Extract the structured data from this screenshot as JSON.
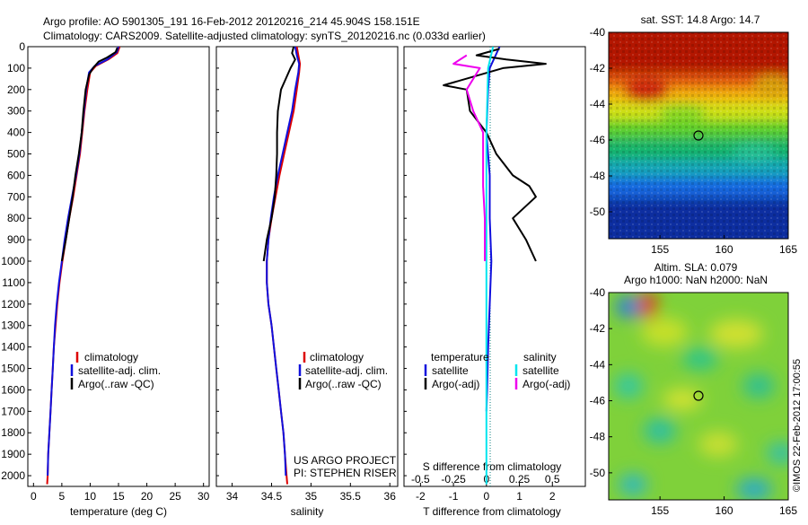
{
  "header": {
    "line1": "Argo profile: AO 5901305_191 16-Feb-2012 20120216_214 45.904S 158.151E",
    "line2": "Climatology: CARS2009. Satellite-adjusted climatology: synTS_20120216.nc (0.033d earlier)"
  },
  "credit": {
    "project": "US ARGO PROJECT",
    "pi": "PI: STEPHEN RISER"
  },
  "stamp": "©IMOS 22-Feb-2012 17:00:55",
  "colors": {
    "climatology": "#dd0000",
    "satellite": "#1010dd",
    "argo": "#000000",
    "sat_salinity": "#00e5ee",
    "argo_salinity": "#ee00ee"
  },
  "depth_ticks": [
    "0",
    "100",
    "200",
    "300",
    "400",
    "500",
    "600",
    "700",
    "800",
    "900",
    "1000",
    "1100",
    "1200",
    "1300",
    "1400",
    "1500",
    "1600",
    "1700",
    "1800",
    "1900",
    "2000"
  ],
  "chart_data": [
    {
      "type": "line",
      "ylim": [
        2050,
        0
      ],
      "xlabel": "temperature (deg C)",
      "xlim": [
        -1,
        31
      ],
      "xticks": [
        "0",
        "5",
        "10",
        "15",
        "20",
        "25",
        "30"
      ],
      "xtick_values": [
        0,
        5,
        10,
        15,
        20,
        25,
        30
      ],
      "legend": [
        "climatology",
        "satellite-adj. clim.",
        "Argo(..raw -QC)"
      ],
      "legend_position": "bottom-center",
      "series": [
        {
          "name": "climatology",
          "color_key": "climatology",
          "points": [
            [
              15.2,
              0
            ],
            [
              14.8,
              30
            ],
            [
              13.2,
              60
            ],
            [
              11.0,
              90
            ],
            [
              10.0,
              120
            ],
            [
              9.5,
              200
            ],
            [
              9.0,
              300
            ],
            [
              8.6,
              400
            ],
            [
              8.2,
              500
            ],
            [
              7.6,
              600
            ],
            [
              7.0,
              700
            ],
            [
              6.3,
              800
            ],
            [
              5.7,
              900
            ],
            [
              5.1,
              1000
            ],
            [
              4.6,
              1100
            ],
            [
              4.2,
              1200
            ],
            [
              3.9,
              1300
            ],
            [
              3.6,
              1400
            ],
            [
              3.4,
              1500
            ],
            [
              3.2,
              1600
            ],
            [
              3.0,
              1700
            ],
            [
              2.8,
              1800
            ],
            [
              2.6,
              1900
            ],
            [
              2.5,
              2000
            ],
            [
              2.4,
              2040
            ]
          ]
        },
        {
          "name": "satellite-adj. clim.",
          "color_key": "satellite",
          "points": [
            [
              15.0,
              0
            ],
            [
              14.7,
              25
            ],
            [
              13.0,
              60
            ],
            [
              10.8,
              90
            ],
            [
              9.8,
              120
            ],
            [
              9.3,
              200
            ],
            [
              8.9,
              300
            ],
            [
              8.5,
              400
            ],
            [
              8.1,
              500
            ],
            [
              7.5,
              600
            ],
            [
              6.8,
              700
            ],
            [
              6.1,
              800
            ],
            [
              5.5,
              900
            ],
            [
              5.0,
              1000
            ],
            [
              4.5,
              1100
            ],
            [
              4.1,
              1200
            ],
            [
              3.8,
              1300
            ],
            [
              3.6,
              1400
            ],
            [
              3.4,
              1500
            ],
            [
              3.2,
              1600
            ],
            [
              3.0,
              1700
            ],
            [
              2.8,
              1800
            ],
            [
              2.6,
              1900
            ],
            [
              2.5,
              2000
            ]
          ]
        },
        {
          "name": "Argo(..raw -QC)",
          "color_key": "argo",
          "points": [
            [
              14.8,
              5
            ],
            [
              14.5,
              25
            ],
            [
              13.0,
              50
            ],
            [
              11.5,
              70
            ],
            [
              10.5,
              100
            ],
            [
              9.8,
              130
            ],
            [
              9.2,
              200
            ],
            [
              8.8,
              300
            ],
            [
              8.5,
              400
            ],
            [
              8.0,
              500
            ],
            [
              7.4,
              600
            ],
            [
              6.9,
              700
            ],
            [
              6.3,
              800
            ],
            [
              5.7,
              900
            ],
            [
              5.0,
              1000
            ]
          ]
        }
      ]
    },
    {
      "type": "line",
      "ylim": [
        2050,
        0
      ],
      "xlabel": "salinity",
      "xlim": [
        33.8,
        36.1
      ],
      "xticks": [
        "34",
        "34.5",
        "35",
        "35.5",
        "36"
      ],
      "xtick_values": [
        34,
        34.5,
        35,
        35.5,
        36
      ],
      "legend": [
        "climatology",
        "satellite-adj. clim.",
        "Argo(..raw -QC)"
      ],
      "legend_position": "bottom-center",
      "series": [
        {
          "name": "climatology",
          "color_key": "climatology",
          "points": [
            [
              34.82,
              0
            ],
            [
              34.84,
              40
            ],
            [
              34.86,
              80
            ],
            [
              34.85,
              120
            ],
            [
              34.82,
              200
            ],
            [
              34.78,
              300
            ],
            [
              34.72,
              400
            ],
            [
              34.66,
              500
            ],
            [
              34.6,
              600
            ],
            [
              34.55,
              700
            ],
            [
              34.5,
              800
            ],
            [
              34.46,
              900
            ],
            [
              34.44,
              1000
            ],
            [
              34.44,
              1100
            ],
            [
              34.46,
              1200
            ],
            [
              34.5,
              1300
            ],
            [
              34.53,
              1400
            ],
            [
              34.56,
              1500
            ],
            [
              34.59,
              1600
            ],
            [
              34.62,
              1700
            ],
            [
              34.65,
              1800
            ],
            [
              34.67,
              1900
            ],
            [
              34.69,
              2000
            ],
            [
              34.7,
              2040
            ]
          ]
        },
        {
          "name": "satellite-adj. clim.",
          "color_key": "satellite",
          "points": [
            [
              34.8,
              0
            ],
            [
              34.82,
              40
            ],
            [
              34.85,
              80
            ],
            [
              34.84,
              120
            ],
            [
              34.8,
              200
            ],
            [
              34.76,
              300
            ],
            [
              34.7,
              400
            ],
            [
              34.64,
              500
            ],
            [
              34.58,
              600
            ],
            [
              34.53,
              700
            ],
            [
              34.49,
              800
            ],
            [
              34.46,
              900
            ],
            [
              34.44,
              1000
            ],
            [
              34.44,
              1100
            ],
            [
              34.46,
              1200
            ],
            [
              34.5,
              1300
            ],
            [
              34.53,
              1400
            ],
            [
              34.56,
              1500
            ],
            [
              34.59,
              1600
            ],
            [
              34.62,
              1700
            ],
            [
              34.65,
              1800
            ],
            [
              34.67,
              1900
            ],
            [
              34.68,
              2000
            ]
          ]
        },
        {
          "name": "Argo(..raw -QC)",
          "color_key": "argo",
          "points": [
            [
              34.78,
              0
            ],
            [
              34.76,
              30
            ],
            [
              34.8,
              60
            ],
            [
              34.74,
              100
            ],
            [
              34.68,
              150
            ],
            [
              34.62,
              200
            ],
            [
              34.58,
              300
            ],
            [
              34.57,
              400
            ],
            [
              34.57,
              500
            ],
            [
              34.56,
              600
            ],
            [
              34.54,
              700
            ],
            [
              34.5,
              800
            ],
            [
              34.44,
              900
            ],
            [
              34.4,
              1000
            ]
          ]
        }
      ]
    },
    {
      "type": "line",
      "ylim": [
        2050,
        0
      ],
      "xlabel": "T difference from climatology",
      "xlabel2": "S difference from climatology",
      "xlim": [
        -2.5,
        3
      ],
      "xticks": [
        "-2",
        "-1",
        "0",
        "1",
        "2"
      ],
      "xtick_values": [
        -2,
        -1,
        0,
        1,
        2
      ],
      "sticks": [
        "-0.5",
        "-0.25",
        "0",
        "0.25",
        "0.5"
      ],
      "stick_values": [
        -2,
        -1,
        0,
        1,
        2
      ],
      "legend_headers": [
        "temperature",
        "salinity"
      ],
      "legend": [
        "satellite",
        "Argo(-adj)",
        "satellite",
        "Argo(-adj)"
      ],
      "series": [
        {
          "name": "satellite",
          "color_key": "satellite",
          "points": [
            [
              0.4,
              0
            ],
            [
              0.1,
              100
            ],
            [
              0.05,
              200
            ],
            [
              0.0,
              400
            ],
            [
              0.1,
              600
            ],
            [
              0.1,
              800
            ],
            [
              0.15,
              1000
            ],
            [
              0.1,
              1200
            ],
            [
              0.05,
              1400
            ],
            [
              0.02,
              1600
            ],
            [
              0.0,
              1700
            ]
          ]
        },
        {
          "name": "Argo(-adj)",
          "color_key": "argo",
          "points": [
            [
              0.4,
              10
            ],
            [
              -0.3,
              40
            ],
            [
              0.6,
              60
            ],
            [
              1.8,
              80
            ],
            [
              0.5,
              100
            ],
            [
              -1.3,
              180
            ],
            [
              -0.6,
              200
            ],
            [
              -0.5,
              300
            ],
            [
              0.0,
              400
            ],
            [
              0.3,
              500
            ],
            [
              0.8,
              600
            ],
            [
              1.3,
              650
            ],
            [
              1.5,
              700
            ],
            [
              0.8,
              800
            ],
            [
              1.2,
              900
            ],
            [
              1.5,
              1000
            ]
          ]
        },
        {
          "name": "satellite",
          "color_key": "sat_salinity",
          "points": [
            [
              0.2,
              0
            ],
            [
              0.05,
              100
            ],
            [
              0.0,
              400
            ],
            [
              0.0,
              800
            ],
            [
              0.0,
              1200
            ],
            [
              0.0,
              1600
            ],
            [
              0.0,
              2040
            ]
          ]
        },
        {
          "name": "Argo(-adj)",
          "color_key": "argo_salinity",
          "points": [
            [
              -0.6,
              40
            ],
            [
              -1.0,
              80
            ],
            [
              -0.2,
              100
            ],
            [
              -0.6,
              200
            ],
            [
              -0.4,
              300
            ],
            [
              -0.1,
              400
            ],
            [
              -0.1,
              650
            ],
            [
              -0.05,
              800
            ],
            [
              -0.05,
              1000
            ]
          ]
        }
      ]
    },
    {
      "type": "heatmap",
      "title": "sat. SST: 14.8  Argo: 14.7",
      "xticks": [
        "155",
        "160",
        "165"
      ],
      "yticks": [
        "-40",
        "-42",
        "-44",
        "-46",
        "-48",
        "-50"
      ],
      "xlim": [
        151,
        165
      ],
      "ylim": [
        -51.5,
        -40
      ],
      "marker": [
        158.151,
        -45.904
      ]
    },
    {
      "type": "heatmap",
      "title": "Altim. SLA: 0.079",
      "title2": "Argo h1000: NaN  h2000: NaN",
      "xticks": [
        "155",
        "160",
        "165"
      ],
      "yticks": [
        "-40",
        "-42",
        "-44",
        "-46",
        "-48",
        "-50"
      ],
      "xlim": [
        151,
        165
      ],
      "ylim": [
        -51.5,
        -40
      ],
      "marker": [
        158.151,
        -45.904
      ]
    }
  ]
}
